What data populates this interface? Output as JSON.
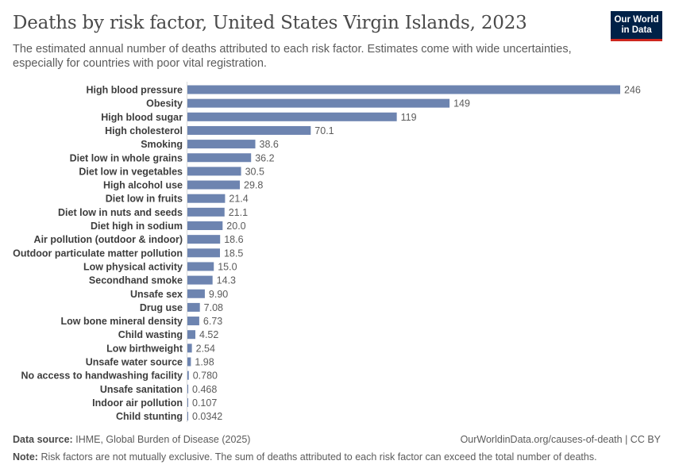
{
  "header": {
    "title": "Deaths by risk factor, United States Virgin Islands, 2023",
    "subtitle": "The estimated annual number of deaths attributed to each risk factor. Estimates come with wide uncertainties, especially for countries with poor vital registration."
  },
  "logo": {
    "line1": "Our World",
    "line2": "in Data",
    "bg": "#002147",
    "accent": "#ce261e"
  },
  "footer": {
    "source_label": "Data source:",
    "source_text": "IHME, Global Burden of Disease (2025)",
    "url_text": "OurWorldinData.org/causes-of-death | CC BY",
    "note_label": "Note:",
    "note_text": "Risk factors are not mutually exclusive. The sum of deaths attributed to each risk factor can exceed the total number of deaths."
  },
  "chart_data": {
    "type": "bar",
    "orientation": "horizontal",
    "bar_color": "#6d84b0",
    "categories": [
      "High blood pressure",
      "Obesity",
      "High blood sugar",
      "High cholesterol",
      "Smoking",
      "Diet low in whole grains",
      "Diet low in vegetables",
      "High alcohol use",
      "Diet low in fruits",
      "Diet low in nuts and seeds",
      "Diet high in sodium",
      "Air pollution (outdoor & indoor)",
      "Outdoor particulate matter pollution",
      "Low physical activity",
      "Secondhand smoke",
      "Unsafe sex",
      "Drug use",
      "Low bone mineral density",
      "Child wasting",
      "Low birthweight",
      "Unsafe water source",
      "No access to handwashing facility",
      "Unsafe sanitation",
      "Indoor air pollution",
      "Child stunting"
    ],
    "values": [
      246,
      149,
      119,
      70.1,
      38.6,
      36.2,
      30.5,
      29.8,
      21.4,
      21.1,
      20.0,
      18.6,
      18.5,
      15.0,
      14.3,
      9.9,
      7.08,
      6.73,
      4.52,
      2.54,
      1.98,
      0.78,
      0.468,
      0.107,
      0.0342
    ],
    "value_labels": [
      "246",
      "149",
      "119",
      "70.1",
      "38.6",
      "36.2",
      "30.5",
      "29.8",
      "21.4",
      "21.1",
      "20.0",
      "18.6",
      "18.5",
      "15.0",
      "14.3",
      "9.90",
      "7.08",
      "6.73",
      "4.52",
      "2.54",
      "1.98",
      "0.780",
      "0.468",
      "0.107",
      "0.0342"
    ],
    "xlim": [
      0,
      246
    ],
    "grid": false,
    "legend": "none"
  }
}
